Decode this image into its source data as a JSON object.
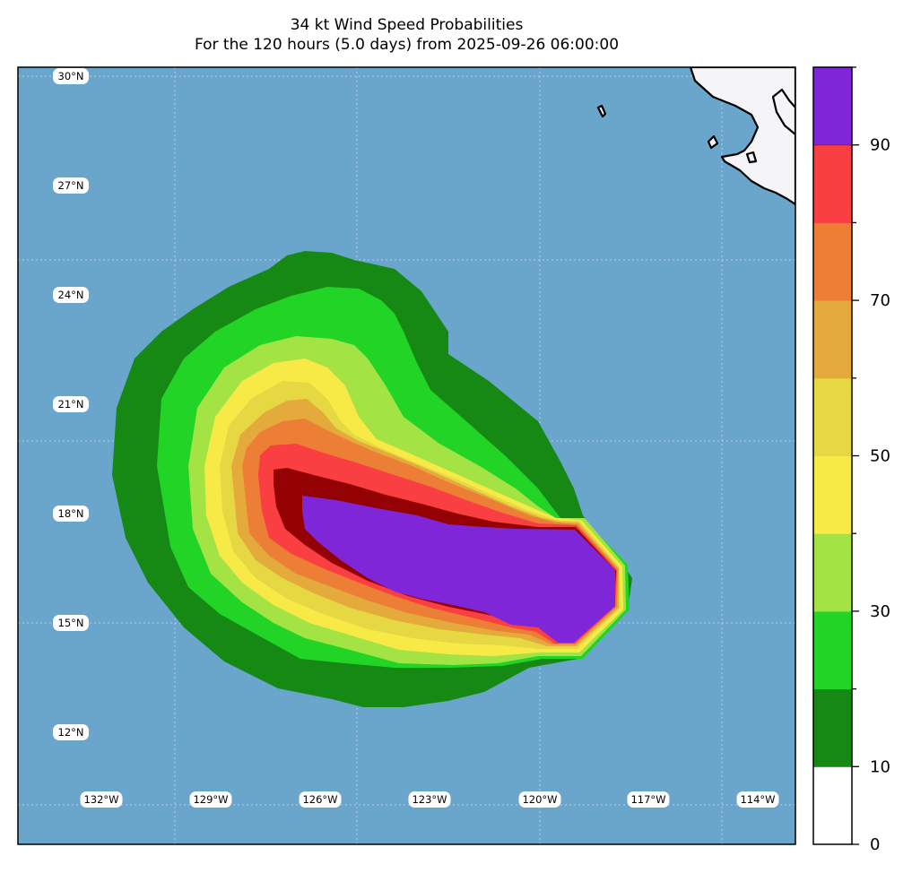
{
  "title": {
    "line1": "34 kt Wind Speed Probabilities",
    "line2": "For the 120 hours (5.0 days) from 2025-09-26 06:00:00"
  },
  "map": {
    "ocean_color": "#6aa6cc",
    "land_color": "#f5f5f7",
    "lat_labels": [
      "30°N",
      "27°N",
      "24°N",
      "21°N",
      "18°N",
      "15°N",
      "12°N"
    ],
    "lon_labels": [
      "132°W",
      "129°W",
      "126°W",
      "123°W",
      "120°W",
      "117°W",
      "114°W"
    ]
  },
  "colorbar": {
    "colors": [
      "#ffffff",
      "#168915",
      "#22d425",
      "#a3e344",
      "#f8ea46",
      "#e5d843",
      "#e4aa3c",
      "#ed7e35",
      "#f93f42",
      "#940102",
      "#7f26d9"
    ],
    "tick_labels": [
      "0",
      "10",
      "30",
      "50",
      "70",
      "90"
    ],
    "tick_values": [
      0,
      10,
      30,
      50,
      70,
      90
    ],
    "range": [
      0,
      100
    ]
  }
}
